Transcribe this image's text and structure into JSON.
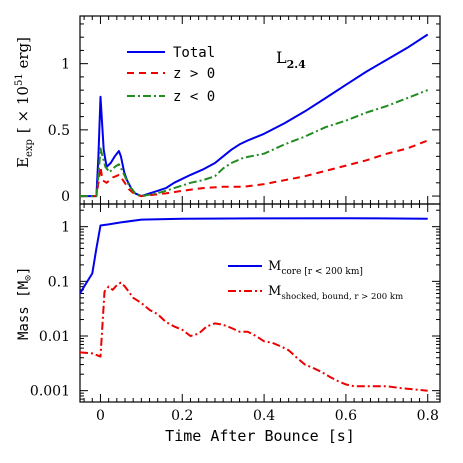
{
  "chart_data": [
    {
      "type": "line",
      "panel": "top",
      "ylabel": "E",
      "ylabel_sub": "exp",
      "ylabel_unit": "[ × 10",
      "ylabel_sup": "51",
      "ylabel_unit_end": " erg]",
      "annotation": "L",
      "annotation_sub": "2.4",
      "xlim": [
        -0.05,
        0.83
      ],
      "ylim": [
        -0.06,
        1.36
      ],
      "yticks": [
        0,
        0.5,
        1
      ],
      "ytick_labels": [
        "0",
        "0.5",
        "1"
      ],
      "legend_position": "top-left",
      "series": [
        {
          "name": "Total",
          "color": "#0000ee",
          "dash": "solid",
          "points": [
            [
              -0.05,
              0
            ],
            [
              -0.01,
              0
            ],
            [
              -0.005,
              0.3
            ],
            [
              0,
              0.75
            ],
            [
              0.003,
              0.6
            ],
            [
              0.008,
              0.35
            ],
            [
              0.015,
              0.22
            ],
            [
              0.025,
              0.25
            ],
            [
              0.035,
              0.3
            ],
            [
              0.045,
              0.34
            ],
            [
              0.05,
              0.3
            ],
            [
              0.058,
              0.18
            ],
            [
              0.065,
              0.12
            ],
            [
              0.075,
              0.06
            ],
            [
              0.085,
              0.02
            ],
            [
              0.1,
              0.0
            ],
            [
              0.12,
              0.02
            ],
            [
              0.14,
              0.04
            ],
            [
              0.16,
              0.06
            ],
            [
              0.18,
              0.1
            ],
            [
              0.2,
              0.13
            ],
            [
              0.22,
              0.16
            ],
            [
              0.25,
              0.2
            ],
            [
              0.28,
              0.25
            ],
            [
              0.3,
              0.3
            ],
            [
              0.32,
              0.35
            ],
            [
              0.34,
              0.39
            ],
            [
              0.36,
              0.42
            ],
            [
              0.4,
              0.47
            ],
            [
              0.45,
              0.55
            ],
            [
              0.5,
              0.64
            ],
            [
              0.55,
              0.74
            ],
            [
              0.6,
              0.84
            ],
            [
              0.65,
              0.94
            ],
            [
              0.7,
              1.03
            ],
            [
              0.75,
              1.12
            ],
            [
              0.8,
              1.22
            ]
          ]
        },
        {
          "name": "z > 0",
          "color": "#ee0000",
          "dash": "dashed",
          "points": [
            [
              -0.05,
              0
            ],
            [
              -0.01,
              0
            ],
            [
              -0.005,
              0.1
            ],
            [
              0,
              0.22
            ],
            [
              0.005,
              0.12
            ],
            [
              0.015,
              0.1
            ],
            [
              0.03,
              0.14
            ],
            [
              0.045,
              0.16
            ],
            [
              0.055,
              0.12
            ],
            [
              0.07,
              0.05
            ],
            [
              0.085,
              0.01
            ],
            [
              0.1,
              0.0
            ],
            [
              0.13,
              0.01
            ],
            [
              0.16,
              0.02
            ],
            [
              0.2,
              0.04
            ],
            [
              0.25,
              0.06
            ],
            [
              0.3,
              0.07
            ],
            [
              0.35,
              0.07
            ],
            [
              0.4,
              0.09
            ],
            [
              0.45,
              0.12
            ],
            [
              0.5,
              0.15
            ],
            [
              0.55,
              0.19
            ],
            [
              0.6,
              0.23
            ],
            [
              0.65,
              0.27
            ],
            [
              0.7,
              0.32
            ],
            [
              0.75,
              0.36
            ],
            [
              0.8,
              0.42
            ]
          ]
        },
        {
          "name": "z < 0",
          "color": "#228b22",
          "dash": "dashdot",
          "points": [
            [
              -0.05,
              0
            ],
            [
              -0.01,
              0
            ],
            [
              -0.005,
              0.15
            ],
            [
              0,
              0.36
            ],
            [
              0.005,
              0.3
            ],
            [
              0.012,
              0.22
            ],
            [
              0.022,
              0.18
            ],
            [
              0.035,
              0.22
            ],
            [
              0.045,
              0.24
            ],
            [
              0.055,
              0.18
            ],
            [
              0.07,
              0.08
            ],
            [
              0.085,
              0.02
            ],
            [
              0.1,
              0.0
            ],
            [
              0.12,
              0.01
            ],
            [
              0.15,
              0.03
            ],
            [
              0.18,
              0.06
            ],
            [
              0.2,
              0.08
            ],
            [
              0.22,
              0.1
            ],
            [
              0.25,
              0.12
            ],
            [
              0.28,
              0.15
            ],
            [
              0.3,
              0.21
            ],
            [
              0.32,
              0.25
            ],
            [
              0.35,
              0.29
            ],
            [
              0.4,
              0.32
            ],
            [
              0.45,
              0.39
            ],
            [
              0.5,
              0.45
            ],
            [
              0.55,
              0.52
            ],
            [
              0.6,
              0.57
            ],
            [
              0.65,
              0.63
            ],
            [
              0.7,
              0.68
            ],
            [
              0.75,
              0.74
            ],
            [
              0.8,
              0.8
            ]
          ]
        }
      ]
    },
    {
      "type": "line",
      "panel": "bottom",
      "xlabel": "Time After Bounce [s]",
      "ylabel": "Mass [M",
      "ylabel_end": "]",
      "ylabel_symbol": "⊙",
      "yscale": "log",
      "xlim": [
        -0.05,
        0.83
      ],
      "ylim": [
        0.00062,
        2.6
      ],
      "yticks": [
        1,
        0.1,
        0.01,
        0.001
      ],
      "ytick_labels": [
        "1",
        "0.1",
        "0.01",
        "0.001"
      ],
      "xticks": [
        0,
        0.2,
        0.4,
        0.6,
        0.8
      ],
      "xtick_labels": [
        "0",
        "0.2",
        "0.4",
        "0.6",
        "0.8"
      ],
      "legend_position": "right",
      "series": [
        {
          "name": "M",
          "name_sub": "core [r < 200 km]",
          "color": "#0000ee",
          "dash": "solid",
          "points": [
            [
              -0.05,
              0.06
            ],
            [
              -0.04,
              0.08
            ],
            [
              -0.02,
              0.14
            ],
            [
              -0.01,
              0.4
            ],
            [
              0,
              1.05
            ],
            [
              0.02,
              1.1
            ],
            [
              0.05,
              1.2
            ],
            [
              0.1,
              1.35
            ],
            [
              0.2,
              1.4
            ],
            [
              0.4,
              1.42
            ],
            [
              0.6,
              1.43
            ],
            [
              0.8,
              1.4
            ]
          ]
        },
        {
          "name": "M",
          "name_sub": "shocked, bound, r > 200 km",
          "color": "#ee0000",
          "dash": "dashdot",
          "points": [
            [
              -0.05,
              0.005
            ],
            [
              -0.02,
              0.0048
            ],
            [
              0,
              0.0042
            ],
            [
              0.01,
              0.065
            ],
            [
              0.02,
              0.08
            ],
            [
              0.03,
              0.07
            ],
            [
              0.04,
              0.085
            ],
            [
              0.05,
              0.095
            ],
            [
              0.06,
              0.08
            ],
            [
              0.08,
              0.05
            ],
            [
              0.1,
              0.04
            ],
            [
              0.12,
              0.03
            ],
            [
              0.14,
              0.025
            ],
            [
              0.16,
              0.018
            ],
            [
              0.18,
              0.015
            ],
            [
              0.2,
              0.013
            ],
            [
              0.22,
              0.01
            ],
            [
              0.24,
              0.011
            ],
            [
              0.26,
              0.015
            ],
            [
              0.28,
              0.017
            ],
            [
              0.3,
              0.016
            ],
            [
              0.32,
              0.014
            ],
            [
              0.34,
              0.012
            ],
            [
              0.36,
              0.012
            ],
            [
              0.38,
              0.01
            ],
            [
              0.4,
              0.008
            ],
            [
              0.42,
              0.0075
            ],
            [
              0.44,
              0.0065
            ],
            [
              0.46,
              0.0055
            ],
            [
              0.48,
              0.004
            ],
            [
              0.5,
              0.003
            ],
            [
              0.52,
              0.0026
            ],
            [
              0.54,
              0.0022
            ],
            [
              0.56,
              0.0018
            ],
            [
              0.58,
              0.0015
            ],
            [
              0.6,
              0.0013
            ],
            [
              0.62,
              0.0012
            ],
            [
              0.66,
              0.0012
            ],
            [
              0.7,
              0.0012
            ],
            [
              0.74,
              0.0011
            ],
            [
              0.8,
              0.001
            ]
          ]
        }
      ]
    }
  ]
}
